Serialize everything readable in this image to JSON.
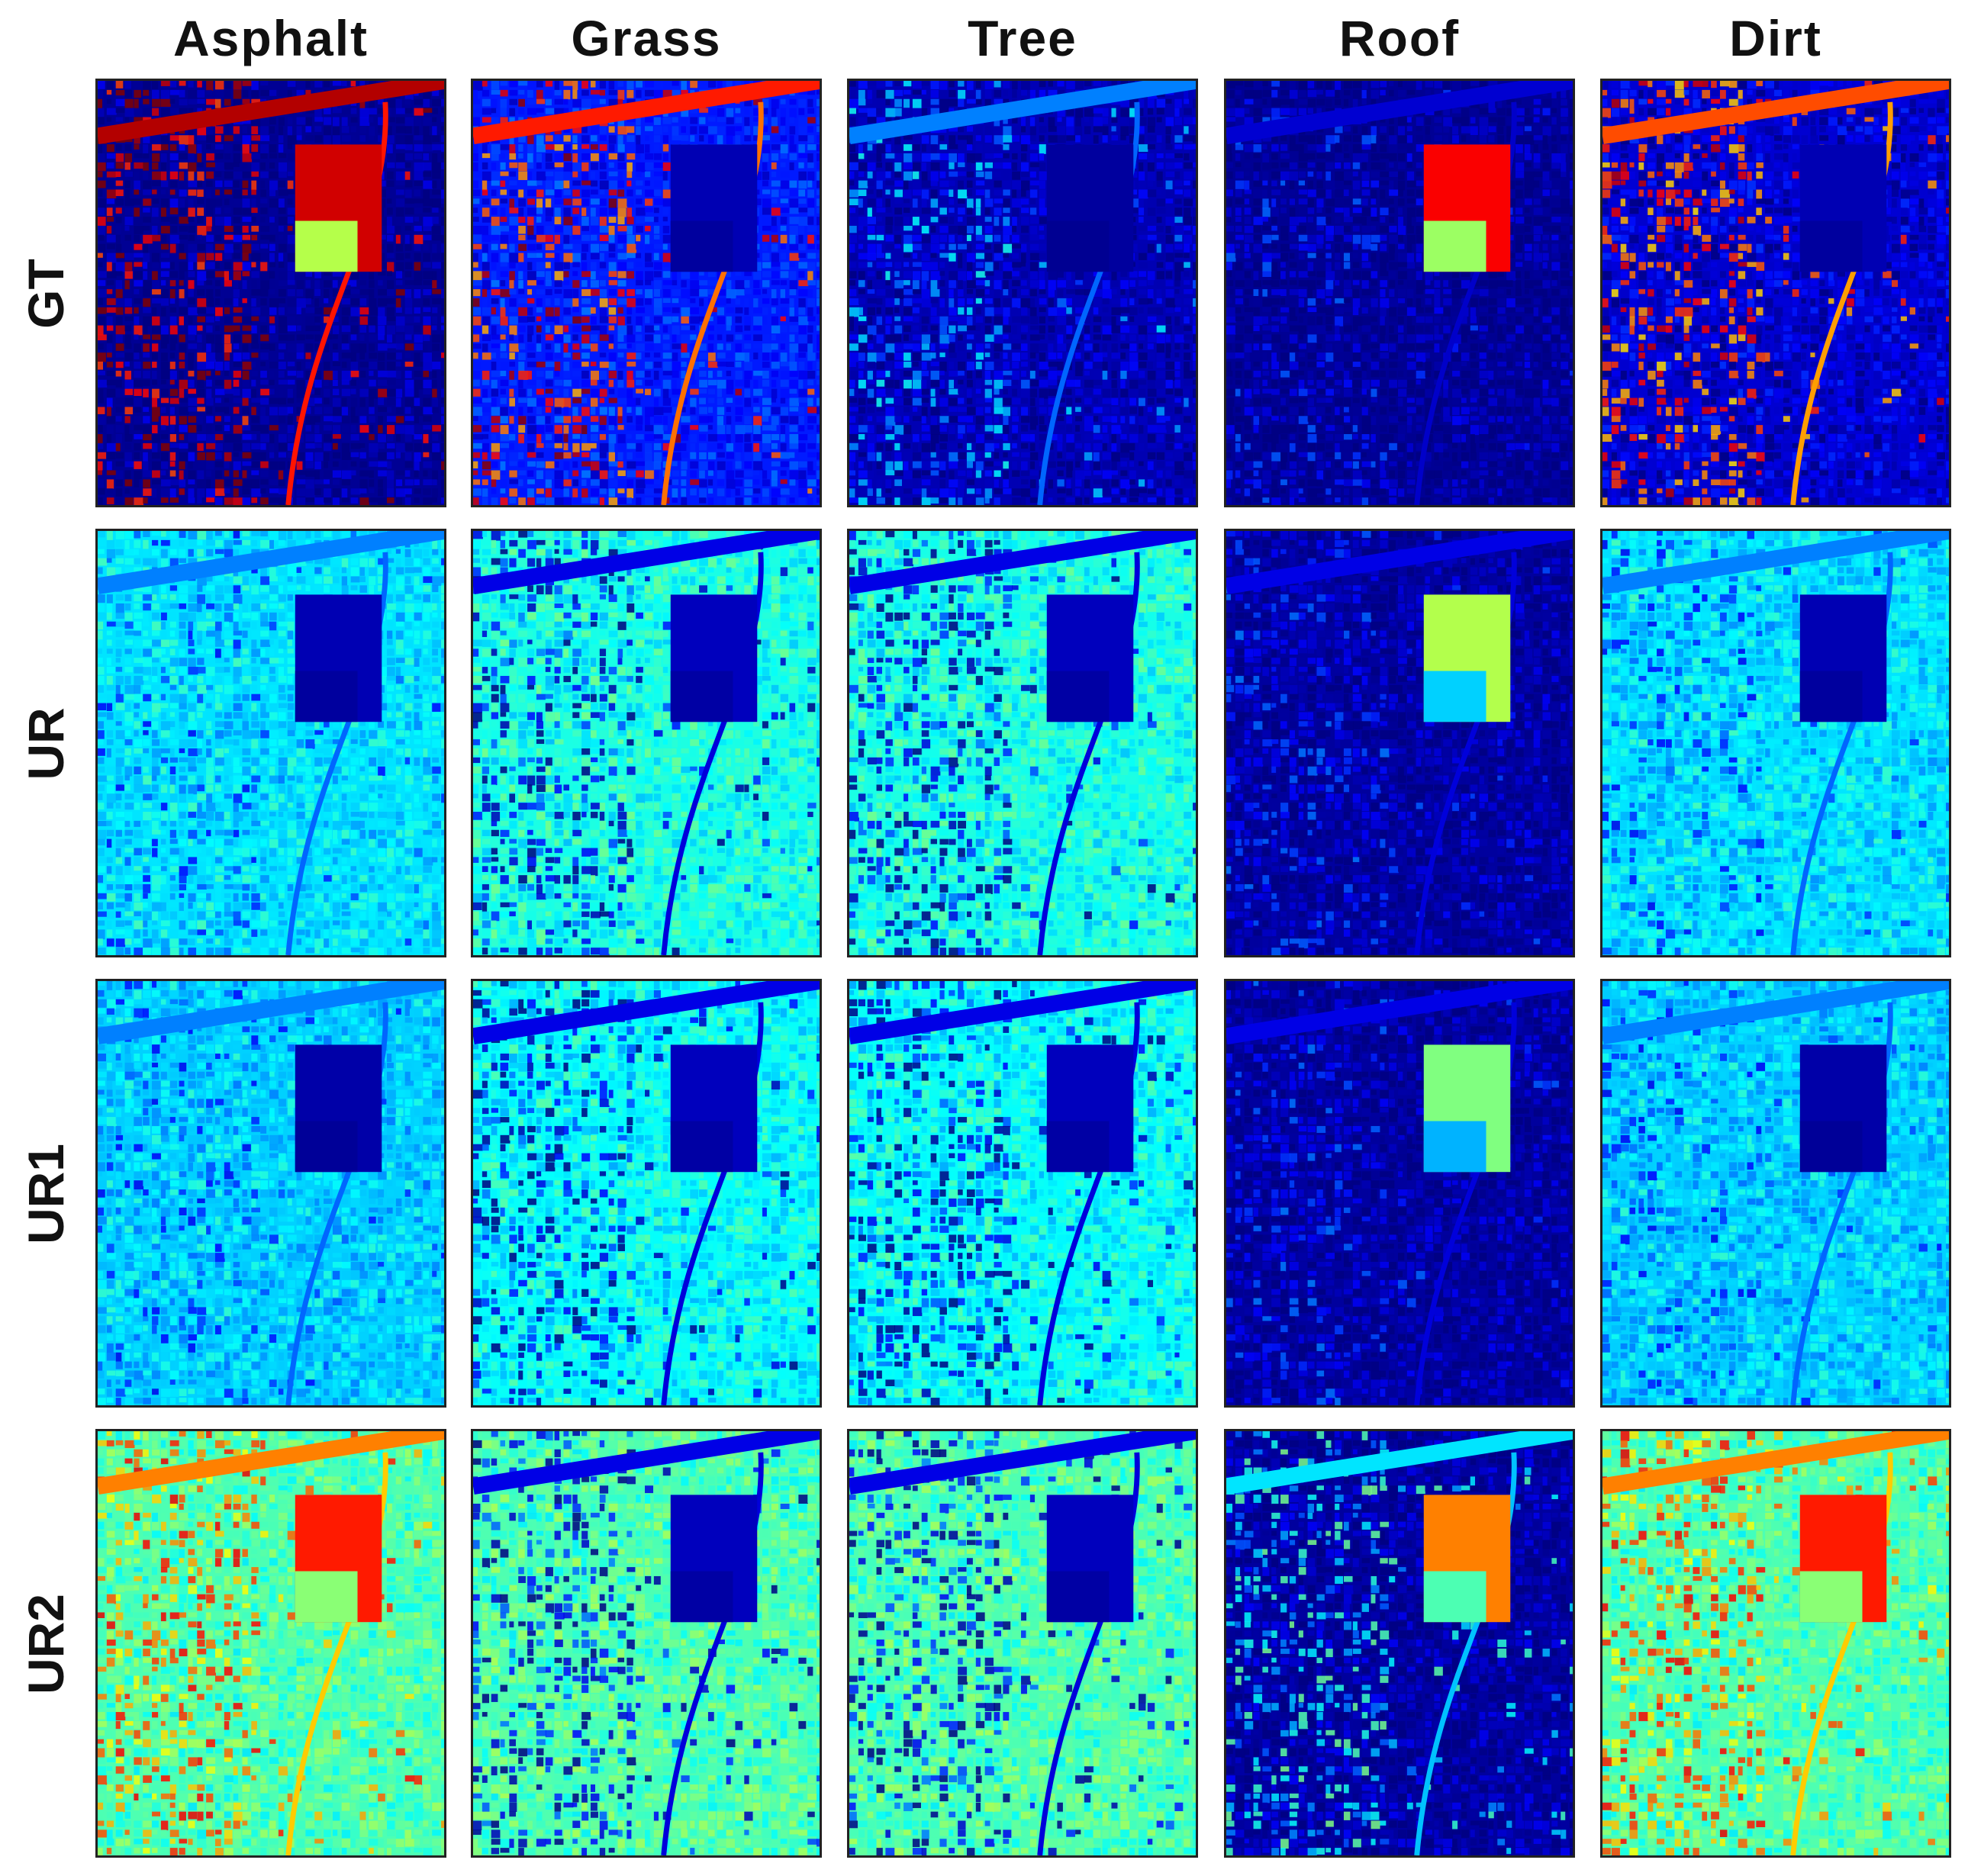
{
  "figure": {
    "columns": [
      "Asphalt",
      "Grass",
      "Tree",
      "Roof",
      "Dirt"
    ],
    "rows": [
      "GT",
      "UR",
      "UR1",
      "UR2"
    ],
    "colormap": {
      "name": "jet",
      "low": "#00008f",
      "mid_low": "#0050ff",
      "mid": "#00e0ff",
      "mid_high": "#ffe600",
      "high": "#d00000"
    },
    "panels": [
      {
        "row": "GT",
        "column": "Asphalt",
        "background_level": 0.02,
        "feature_level": 0.95,
        "block_level": 0.92
      },
      {
        "row": "GT",
        "column": "Grass",
        "background_level": 0.15,
        "feature_level": 0.85,
        "block_level": 0.05
      },
      {
        "row": "GT",
        "column": "Tree",
        "background_level": 0.05,
        "feature_level": 0.25,
        "block_level": 0.03
      },
      {
        "row": "GT",
        "column": "Roof",
        "background_level": 0.02,
        "feature_level": 0.08,
        "block_level": 0.88
      },
      {
        "row": "GT",
        "column": "Dirt",
        "background_level": 0.08,
        "feature_level": 0.8,
        "block_level": 0.05
      },
      {
        "row": "UR",
        "column": "Asphalt",
        "background_level": 0.35,
        "feature_level": 0.25,
        "block_level": 0.05
      },
      {
        "row": "UR",
        "column": "Grass",
        "background_level": 0.4,
        "feature_level": 0.1,
        "block_level": 0.06
      },
      {
        "row": "UR",
        "column": "Tree",
        "background_level": 0.4,
        "feature_level": 0.1,
        "block_level": 0.06
      },
      {
        "row": "UR",
        "column": "Roof",
        "background_level": 0.03,
        "feature_level": 0.1,
        "block_level": 0.55
      },
      {
        "row": "UR",
        "column": "Dirt",
        "background_level": 0.35,
        "feature_level": 0.25,
        "block_level": 0.05
      },
      {
        "row": "UR1",
        "column": "Asphalt",
        "background_level": 0.33,
        "feature_level": 0.25,
        "block_level": 0.04
      },
      {
        "row": "UR1",
        "column": "Grass",
        "background_level": 0.38,
        "feature_level": 0.1,
        "block_level": 0.06
      },
      {
        "row": "UR1",
        "column": "Tree",
        "background_level": 0.38,
        "feature_level": 0.1,
        "block_level": 0.06
      },
      {
        "row": "UR1",
        "column": "Roof",
        "background_level": 0.03,
        "feature_level": 0.1,
        "block_level": 0.5
      },
      {
        "row": "UR1",
        "column": "Dirt",
        "background_level": 0.33,
        "feature_level": 0.25,
        "block_level": 0.04
      },
      {
        "row": "UR2",
        "column": "Asphalt",
        "background_level": 0.45,
        "feature_level": 0.75,
        "block_level": 0.85
      },
      {
        "row": "UR2",
        "column": "Grass",
        "background_level": 0.45,
        "feature_level": 0.1,
        "block_level": 0.06
      },
      {
        "row": "UR2",
        "column": "Tree",
        "background_level": 0.45,
        "feature_level": 0.1,
        "block_level": 0.06
      },
      {
        "row": "UR2",
        "column": "Roof",
        "background_level": 0.03,
        "feature_level": 0.35,
        "block_level": 0.75
      },
      {
        "row": "UR2",
        "column": "Dirt",
        "background_level": 0.45,
        "feature_level": 0.75,
        "block_level": 0.85
      }
    ]
  }
}
